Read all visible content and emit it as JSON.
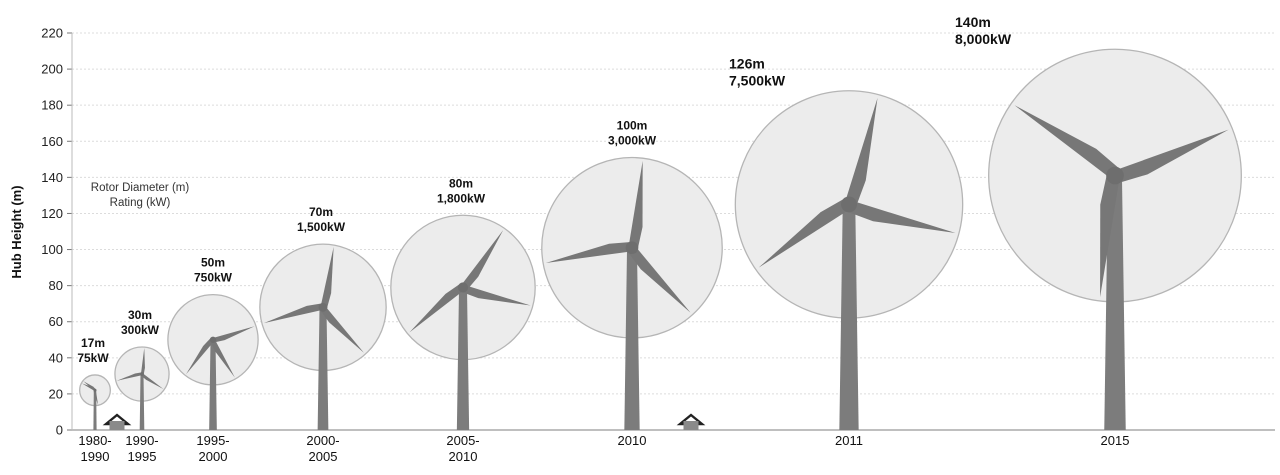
{
  "chart_data": {
    "type": "scatter",
    "ylabel": "Hub Height (m)",
    "ylim": [
      0,
      220
    ],
    "y_ticks": [
      0,
      20,
      40,
      60,
      80,
      100,
      120,
      140,
      160,
      180,
      200,
      220
    ],
    "grid": true,
    "legend": {
      "position": "left",
      "lines": [
        "Rotor Diameter (m)",
        "Rating (kW)"
      ]
    },
    "turbines": [
      {
        "period": [
          "1980-",
          "1990"
        ],
        "hub_height": 22,
        "rotor_diameter": 17,
        "label_diameter": "17m",
        "label_rating": "75kW"
      },
      {
        "period": [
          "1990-",
          "1995"
        ],
        "hub_height": 31,
        "rotor_diameter": 30,
        "label_diameter": "30m",
        "label_rating": "300kW"
      },
      {
        "period": [
          "1995-",
          "2000"
        ],
        "hub_height": 50,
        "rotor_diameter": 50,
        "label_diameter": "50m",
        "label_rating": "750kW"
      },
      {
        "period": [
          "2000-",
          "2005"
        ],
        "hub_height": 68,
        "rotor_diameter": 70,
        "label_diameter": "70m",
        "label_rating": "1,500kW"
      },
      {
        "period": [
          "2005-",
          "2010"
        ],
        "hub_height": 79,
        "rotor_diameter": 80,
        "label_diameter": "80m",
        "label_rating": "1,800kW"
      },
      {
        "period": [
          "2010"
        ],
        "hub_height": 101,
        "rotor_diameter": 100,
        "label_diameter": "100m",
        "label_rating": "3,000kW"
      },
      {
        "period": [
          "2011"
        ],
        "hub_height": 125,
        "rotor_diameter": 126,
        "label_diameter": "126m",
        "label_rating": "7,500kW"
      },
      {
        "period": [
          "2015"
        ],
        "hub_height": 141,
        "rotor_diameter": 140,
        "label_diameter": "140m",
        "label_rating": "8,000kW"
      }
    ]
  }
}
